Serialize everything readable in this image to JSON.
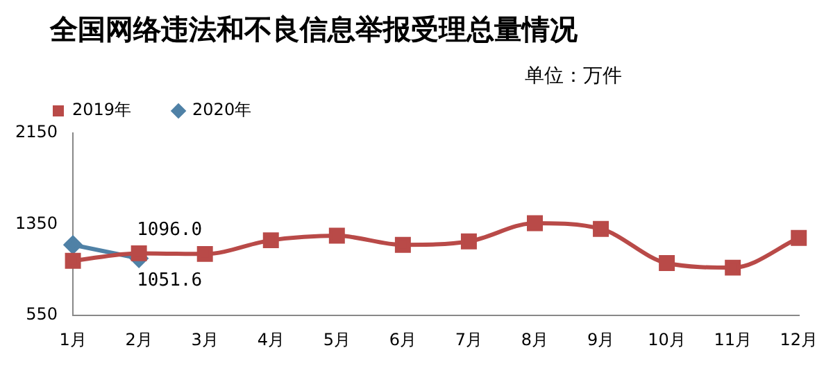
{
  "chart_data": {
    "type": "line",
    "title": "全国网络违法和不良信息举报受理总量情况",
    "annotations": [
      "单位：万件"
    ],
    "categories": [
      "1月",
      "2月",
      "3月",
      "4月",
      "5月",
      "6月",
      "7月",
      "8月",
      "9月",
      "10月",
      "11月",
      "12月"
    ],
    "series": [
      {
        "name": "2019年",
        "color": "#b94a48",
        "marker": "square",
        "values": [
          1030,
          1096.0,
          1090,
          1210,
          1250,
          1170,
          1200,
          1360,
          1310,
          1010,
          970,
          1230
        ],
        "value_labels": [
          null,
          "1096.0",
          null,
          null,
          null,
          null,
          null,
          null,
          null,
          null,
          null,
          null
        ]
      },
      {
        "name": "2020年",
        "color": "#4f81a6",
        "marker": "diamond",
        "values": [
          1170,
          1051.6,
          null,
          null,
          null,
          null,
          null,
          null,
          null,
          null,
          null,
          null
        ],
        "value_labels": [
          null,
          "1051.6",
          null,
          null,
          null,
          null,
          null,
          null,
          null,
          null,
          null,
          null
        ]
      }
    ],
    "ylim": [
      550,
      2150
    ],
    "yticks": [
      550,
      1350,
      2150
    ],
    "grid": false,
    "legend": "top"
  }
}
